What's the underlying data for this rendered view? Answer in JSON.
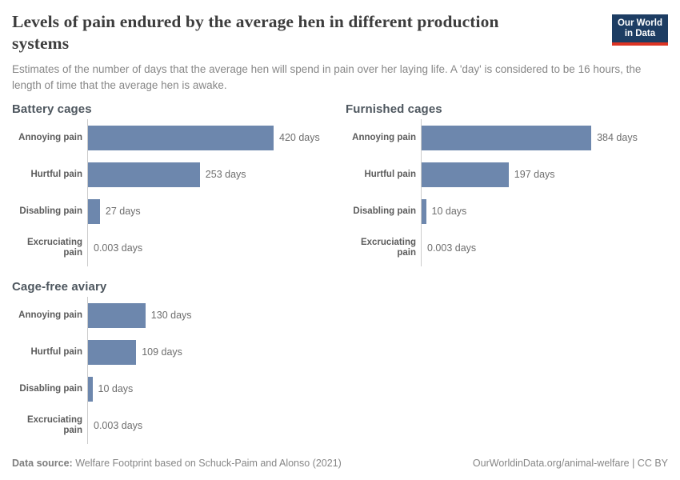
{
  "header": {
    "title": "Levels of pain endured by the average hen in different production systems",
    "subtitle": "Estimates of the number of days that the average hen will spend in pain over her laying life. A 'day' is considered to be 16 hours, the length of time that the average hen is awake."
  },
  "logo": {
    "line1": "Our World",
    "line2": "in Data"
  },
  "colors": {
    "bar": "#6d87ad",
    "axis": "#cccccc",
    "logo_background": "#1d3d63",
    "logo_underline": "#dc3424",
    "title_text": "#3d3d3d",
    "muted_text": "#878787"
  },
  "chart_data": {
    "type": "bar",
    "orientation": "horizontal",
    "value_unit": "days",
    "xlim": [
      0,
      420
    ],
    "grid": false,
    "legend": "none",
    "categories": [
      "Annoying pain",
      "Hurtful pain",
      "Disabling pain",
      "Excruciating pain"
    ],
    "series": [
      {
        "name": "Battery cages",
        "values": [
          420,
          253,
          27,
          0.003
        ],
        "value_labels": [
          "420 days",
          "253 days",
          "27 days",
          "0.003 days"
        ]
      },
      {
        "name": "Furnished cages",
        "values": [
          384,
          197,
          10,
          0.003
        ],
        "value_labels": [
          "384 days",
          "197 days",
          "10 days",
          "0.003 days"
        ]
      },
      {
        "name": "Cage-free aviary",
        "values": [
          130,
          109,
          10,
          0.003
        ],
        "value_labels": [
          "130 days",
          "109 days",
          "10 days",
          "0.003 days"
        ]
      }
    ]
  },
  "footer": {
    "data_source_label": "Data source:",
    "data_source_value": "Welfare Footprint based on Schuck-Paim and Alonso (2021)",
    "attribution": "OurWorldinData.org/animal-welfare | CC BY"
  }
}
